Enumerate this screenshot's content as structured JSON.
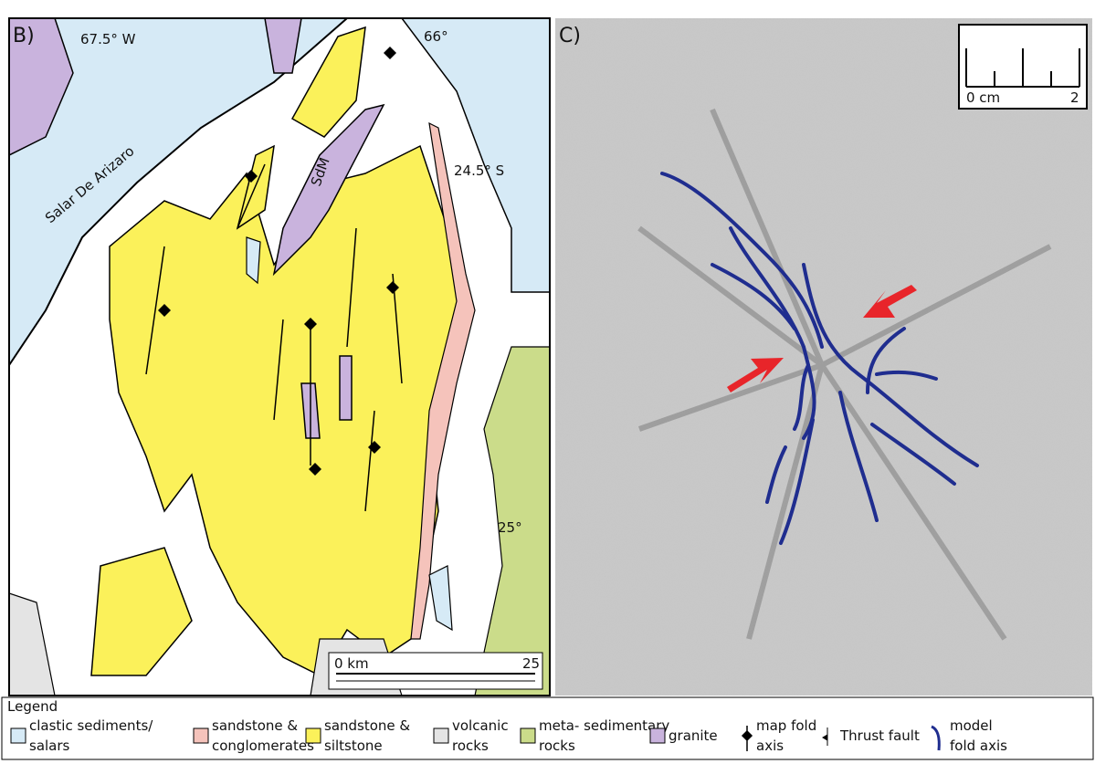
{
  "panel_b": {
    "label": "B)",
    "lon_labels": [
      "67.5° W",
      "66°"
    ],
    "lat_labels": [
      "24.5° S",
      "25°"
    ],
    "place_labels": [
      "Salar De Arizaro",
      "SdM"
    ],
    "scale_bar": {
      "start": "0 km",
      "end": "25"
    }
  },
  "panel_c": {
    "label": "C)",
    "scale_bar": {
      "start": "0 cm",
      "end": "2"
    }
  },
  "legend": {
    "title": "Legend",
    "items": [
      {
        "lines": [
          "clastic sediments/",
          "salars"
        ]
      },
      {
        "lines": [
          "sandstone &",
          "conglomerates"
        ]
      },
      {
        "lines": [
          "sandstone &",
          "siltstone"
        ]
      },
      {
        "lines": [
          "volcanic",
          "rocks"
        ]
      },
      {
        "lines": [
          "meta- sedimentary",
          "rocks"
        ]
      },
      {
        "lines": [
          "granite"
        ]
      },
      {
        "lines": [
          "map fold",
          "axis"
        ]
      },
      {
        "lines": [
          "Thrust fault"
        ]
      },
      {
        "lines": [
          "model",
          "fold axis"
        ]
      }
    ]
  }
}
